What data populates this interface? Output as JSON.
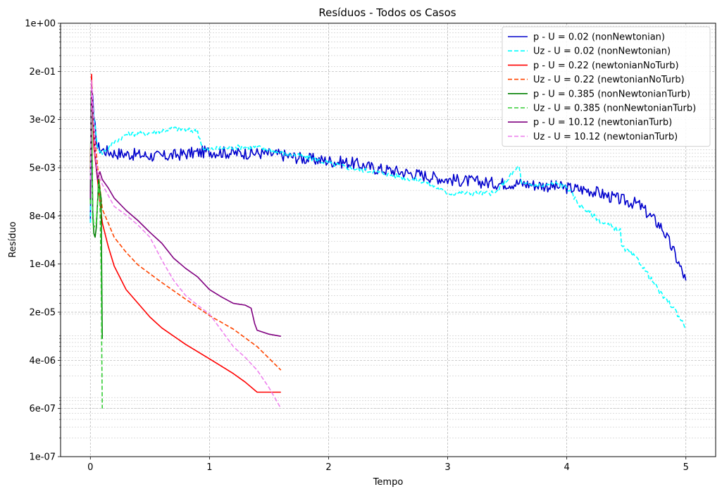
{
  "chart_data": {
    "type": "line",
    "title": "Resíduos - Todos os Casos",
    "xlabel": "Tempo",
    "ylabel": "Resíduo",
    "xlim": [
      -0.25,
      5.25
    ],
    "ylim": [
      1e-07,
      1
    ],
    "yscale": "log",
    "grid": true,
    "legend_position": "top-right",
    "x_ticks": [
      0,
      1,
      2,
      3,
      4,
      5
    ],
    "x_tick_labels": [
      "0",
      "1",
      "2",
      "3",
      "4",
      "5"
    ],
    "y_tick_labels": [
      "1e-07",
      "6e-07",
      "4e-06",
      "2e-05",
      "1e-04",
      "8e-04",
      "5e-03",
      "3e-02",
      "2e-01",
      "1e+00"
    ],
    "series": [
      {
        "name": "p - U = 0.02 (nonNewtonian)",
        "color": "#0000cc",
        "dash": "solid",
        "noise": 0.1,
        "points": [
          [
            0.0,
            0.0006
          ],
          [
            0.01,
            0.1
          ],
          [
            0.03,
            0.03
          ],
          [
            0.06,
            0.01
          ],
          [
            0.1,
            0.009
          ],
          [
            0.2,
            0.008
          ],
          [
            0.4,
            0.0075
          ],
          [
            0.6,
            0.007
          ],
          [
            0.8,
            0.0078
          ],
          [
            1.0,
            0.0085
          ],
          [
            1.2,
            0.008
          ],
          [
            1.4,
            0.008
          ],
          [
            1.6,
            0.0075
          ],
          [
            1.8,
            0.0065
          ],
          [
            2.0,
            0.006
          ],
          [
            2.2,
            0.0055
          ],
          [
            2.4,
            0.0045
          ],
          [
            2.6,
            0.004
          ],
          [
            2.8,
            0.0035
          ],
          [
            3.0,
            0.003
          ],
          [
            3.2,
            0.0028
          ],
          [
            3.4,
            0.0026
          ],
          [
            3.6,
            0.0026
          ],
          [
            3.8,
            0.0024
          ],
          [
            4.0,
            0.0022
          ],
          [
            4.2,
            0.002
          ],
          [
            4.4,
            0.0015
          ],
          [
            4.6,
            0.0012
          ],
          [
            4.8,
            0.0005
          ],
          [
            4.9,
            0.0002
          ],
          [
            5.0,
            7e-05
          ]
        ]
      },
      {
        "name": "Uz - U = 0.02 (nonNewtonian)",
        "color": "#00ffff",
        "dash": "dashed",
        "noise": 0.04,
        "points": [
          [
            0.0,
            0.0006
          ],
          [
            0.01,
            0.1
          ],
          [
            0.03,
            0.03
          ],
          [
            0.06,
            0.01
          ],
          [
            0.1,
            0.008
          ],
          [
            0.2,
            0.012
          ],
          [
            0.3,
            0.016
          ],
          [
            0.5,
            0.017
          ],
          [
            0.7,
            0.02
          ],
          [
            0.9,
            0.018
          ],
          [
            0.95,
            0.009
          ],
          [
            1.2,
            0.01
          ],
          [
            1.4,
            0.01
          ],
          [
            1.6,
            0.008
          ],
          [
            1.8,
            0.007
          ],
          [
            2.0,
            0.0055
          ],
          [
            2.2,
            0.0045
          ],
          [
            2.4,
            0.004
          ],
          [
            2.6,
            0.0033
          ],
          [
            2.8,
            0.0028
          ],
          [
            3.0,
            0.0018
          ],
          [
            3.2,
            0.0018
          ],
          [
            3.4,
            0.0018
          ],
          [
            3.6,
            0.005
          ],
          [
            3.62,
            0.0025
          ],
          [
            3.8,
            0.0024
          ],
          [
            3.9,
            0.0026
          ],
          [
            4.0,
            0.0023
          ],
          [
            4.1,
            0.0012
          ],
          [
            4.3,
            0.0006
          ],
          [
            4.45,
            0.00045
          ],
          [
            4.46,
            0.00025
          ],
          [
            4.6,
            0.00015
          ],
          [
            4.8,
            4e-05
          ],
          [
            4.9,
            2.5e-05
          ],
          [
            5.0,
            1.2e-05
          ]
        ]
      },
      {
        "name": "p - U = 0.22 (newtonianNoTurb)",
        "color": "#ff0000",
        "dash": "solid",
        "noise": 0,
        "points": [
          [
            0.0,
            0.004
          ],
          [
            0.01,
            0.15
          ],
          [
            0.03,
            0.01
          ],
          [
            0.06,
            0.003
          ],
          [
            0.1,
            0.0006
          ],
          [
            0.15,
            0.00025
          ],
          [
            0.2,
            0.00012
          ],
          [
            0.3,
            5e-05
          ],
          [
            0.4,
            3e-05
          ],
          [
            0.5,
            1.8e-05
          ],
          [
            0.6,
            1.2e-05
          ],
          [
            0.8,
            6.5e-06
          ],
          [
            1.0,
            3.8e-06
          ],
          [
            1.2,
            2.2e-06
          ],
          [
            1.3,
            1.6e-06
          ],
          [
            1.4,
            1.1e-06
          ],
          [
            1.5,
            1.1e-06
          ],
          [
            1.6,
            1.1e-06
          ]
        ]
      },
      {
        "name": "Uz - U = 0.22 (newtonianNoTurb)",
        "color": "#ff4500",
        "dash": "dashed",
        "noise": 0,
        "points": [
          [
            0.0,
            0.004
          ],
          [
            0.01,
            0.12
          ],
          [
            0.03,
            0.02
          ],
          [
            0.06,
            0.005
          ],
          [
            0.1,
            0.001
          ],
          [
            0.2,
            0.00035
          ],
          [
            0.3,
            0.0002
          ],
          [
            0.4,
            0.000125
          ],
          [
            0.6,
            6.5e-05
          ],
          [
            0.8,
            3.5e-05
          ],
          [
            1.0,
            1.9e-05
          ],
          [
            1.2,
            1.15e-05
          ],
          [
            1.4,
            6e-06
          ],
          [
            1.6,
            2.5e-06
          ]
        ]
      },
      {
        "name": "p - U = 0.385 (nonNewtonianTurb)",
        "color": "#008000",
        "dash": "solid",
        "noise": 0,
        "points": [
          [
            0.0,
            0.0012
          ],
          [
            0.005,
            0.06
          ],
          [
            0.01,
            0.03
          ],
          [
            0.02,
            0.0008
          ],
          [
            0.03,
            0.0004
          ],
          [
            0.04,
            0.00035
          ],
          [
            0.05,
            0.0005
          ],
          [
            0.06,
            0.0012
          ],
          [
            0.07,
            0.003
          ],
          [
            0.08,
            0.002
          ],
          [
            0.09,
            0.0015
          ],
          [
            0.1,
            8e-06
          ]
        ]
      },
      {
        "name": "Uz - U = 0.385 (nonNewtonianTurb)",
        "color": "#33cc33",
        "dash": "dashed",
        "noise": 0,
        "points": [
          [
            0.0,
            0.0012
          ],
          [
            0.005,
            0.08
          ],
          [
            0.01,
            0.04
          ],
          [
            0.02,
            0.001
          ],
          [
            0.03,
            0.0005
          ],
          [
            0.05,
            0.0006
          ],
          [
            0.07,
            0.0025
          ],
          [
            0.08,
            0.0015
          ],
          [
            0.09,
            0.0001
          ],
          [
            0.1,
            6e-07
          ]
        ]
      },
      {
        "name": "p - U = 10.12 (newtonianTurb)",
        "color": "#800080",
        "dash": "solid",
        "noise": 0,
        "points": [
          [
            0.0,
            0.0015
          ],
          [
            0.01,
            0.1
          ],
          [
            0.02,
            0.04
          ],
          [
            0.04,
            0.008
          ],
          [
            0.06,
            0.003
          ],
          [
            0.08,
            0.004
          ],
          [
            0.1,
            0.003
          ],
          [
            0.15,
            0.0022
          ],
          [
            0.2,
            0.0015
          ],
          [
            0.3,
            0.00095
          ],
          [
            0.4,
            0.00065
          ],
          [
            0.5,
            0.00042
          ],
          [
            0.6,
            0.00028
          ],
          [
            0.7,
            0.00016
          ],
          [
            0.8,
            0.00011
          ],
          [
            0.9,
            8e-05
          ],
          [
            1.0,
            5e-05
          ],
          [
            1.1,
            3.8e-05
          ],
          [
            1.2,
            3e-05
          ],
          [
            1.3,
            2.8e-05
          ],
          [
            1.35,
            2.5e-05
          ],
          [
            1.38,
            1.4e-05
          ],
          [
            1.4,
            1.1e-05
          ],
          [
            1.5,
            9.5e-06
          ],
          [
            1.6,
            8.8e-06
          ]
        ]
      },
      {
        "name": "Uz - U = 10.12 (newtonianTurb)",
        "color": "#ee82ee",
        "dash": "dashed",
        "noise": 0,
        "points": [
          [
            0.0,
            0.003
          ],
          [
            0.01,
            0.12
          ],
          [
            0.02,
            0.05
          ],
          [
            0.04,
            0.008
          ],
          [
            0.06,
            0.004
          ],
          [
            0.1,
            0.0025
          ],
          [
            0.2,
            0.0011
          ],
          [
            0.3,
            0.0008
          ],
          [
            0.4,
            0.00055
          ],
          [
            0.5,
            0.00035
          ],
          [
            0.6,
            0.00015
          ],
          [
            0.7,
            7e-05
          ],
          [
            0.8,
            4e-05
          ],
          [
            0.9,
            2.8e-05
          ],
          [
            1.0,
            2e-05
          ],
          [
            1.1,
            1.1e-05
          ],
          [
            1.2,
            6e-06
          ],
          [
            1.3,
            4e-06
          ],
          [
            1.4,
            2.5e-06
          ],
          [
            1.5,
            1.3e-06
          ],
          [
            1.6,
            6e-07
          ]
        ]
      }
    ]
  }
}
